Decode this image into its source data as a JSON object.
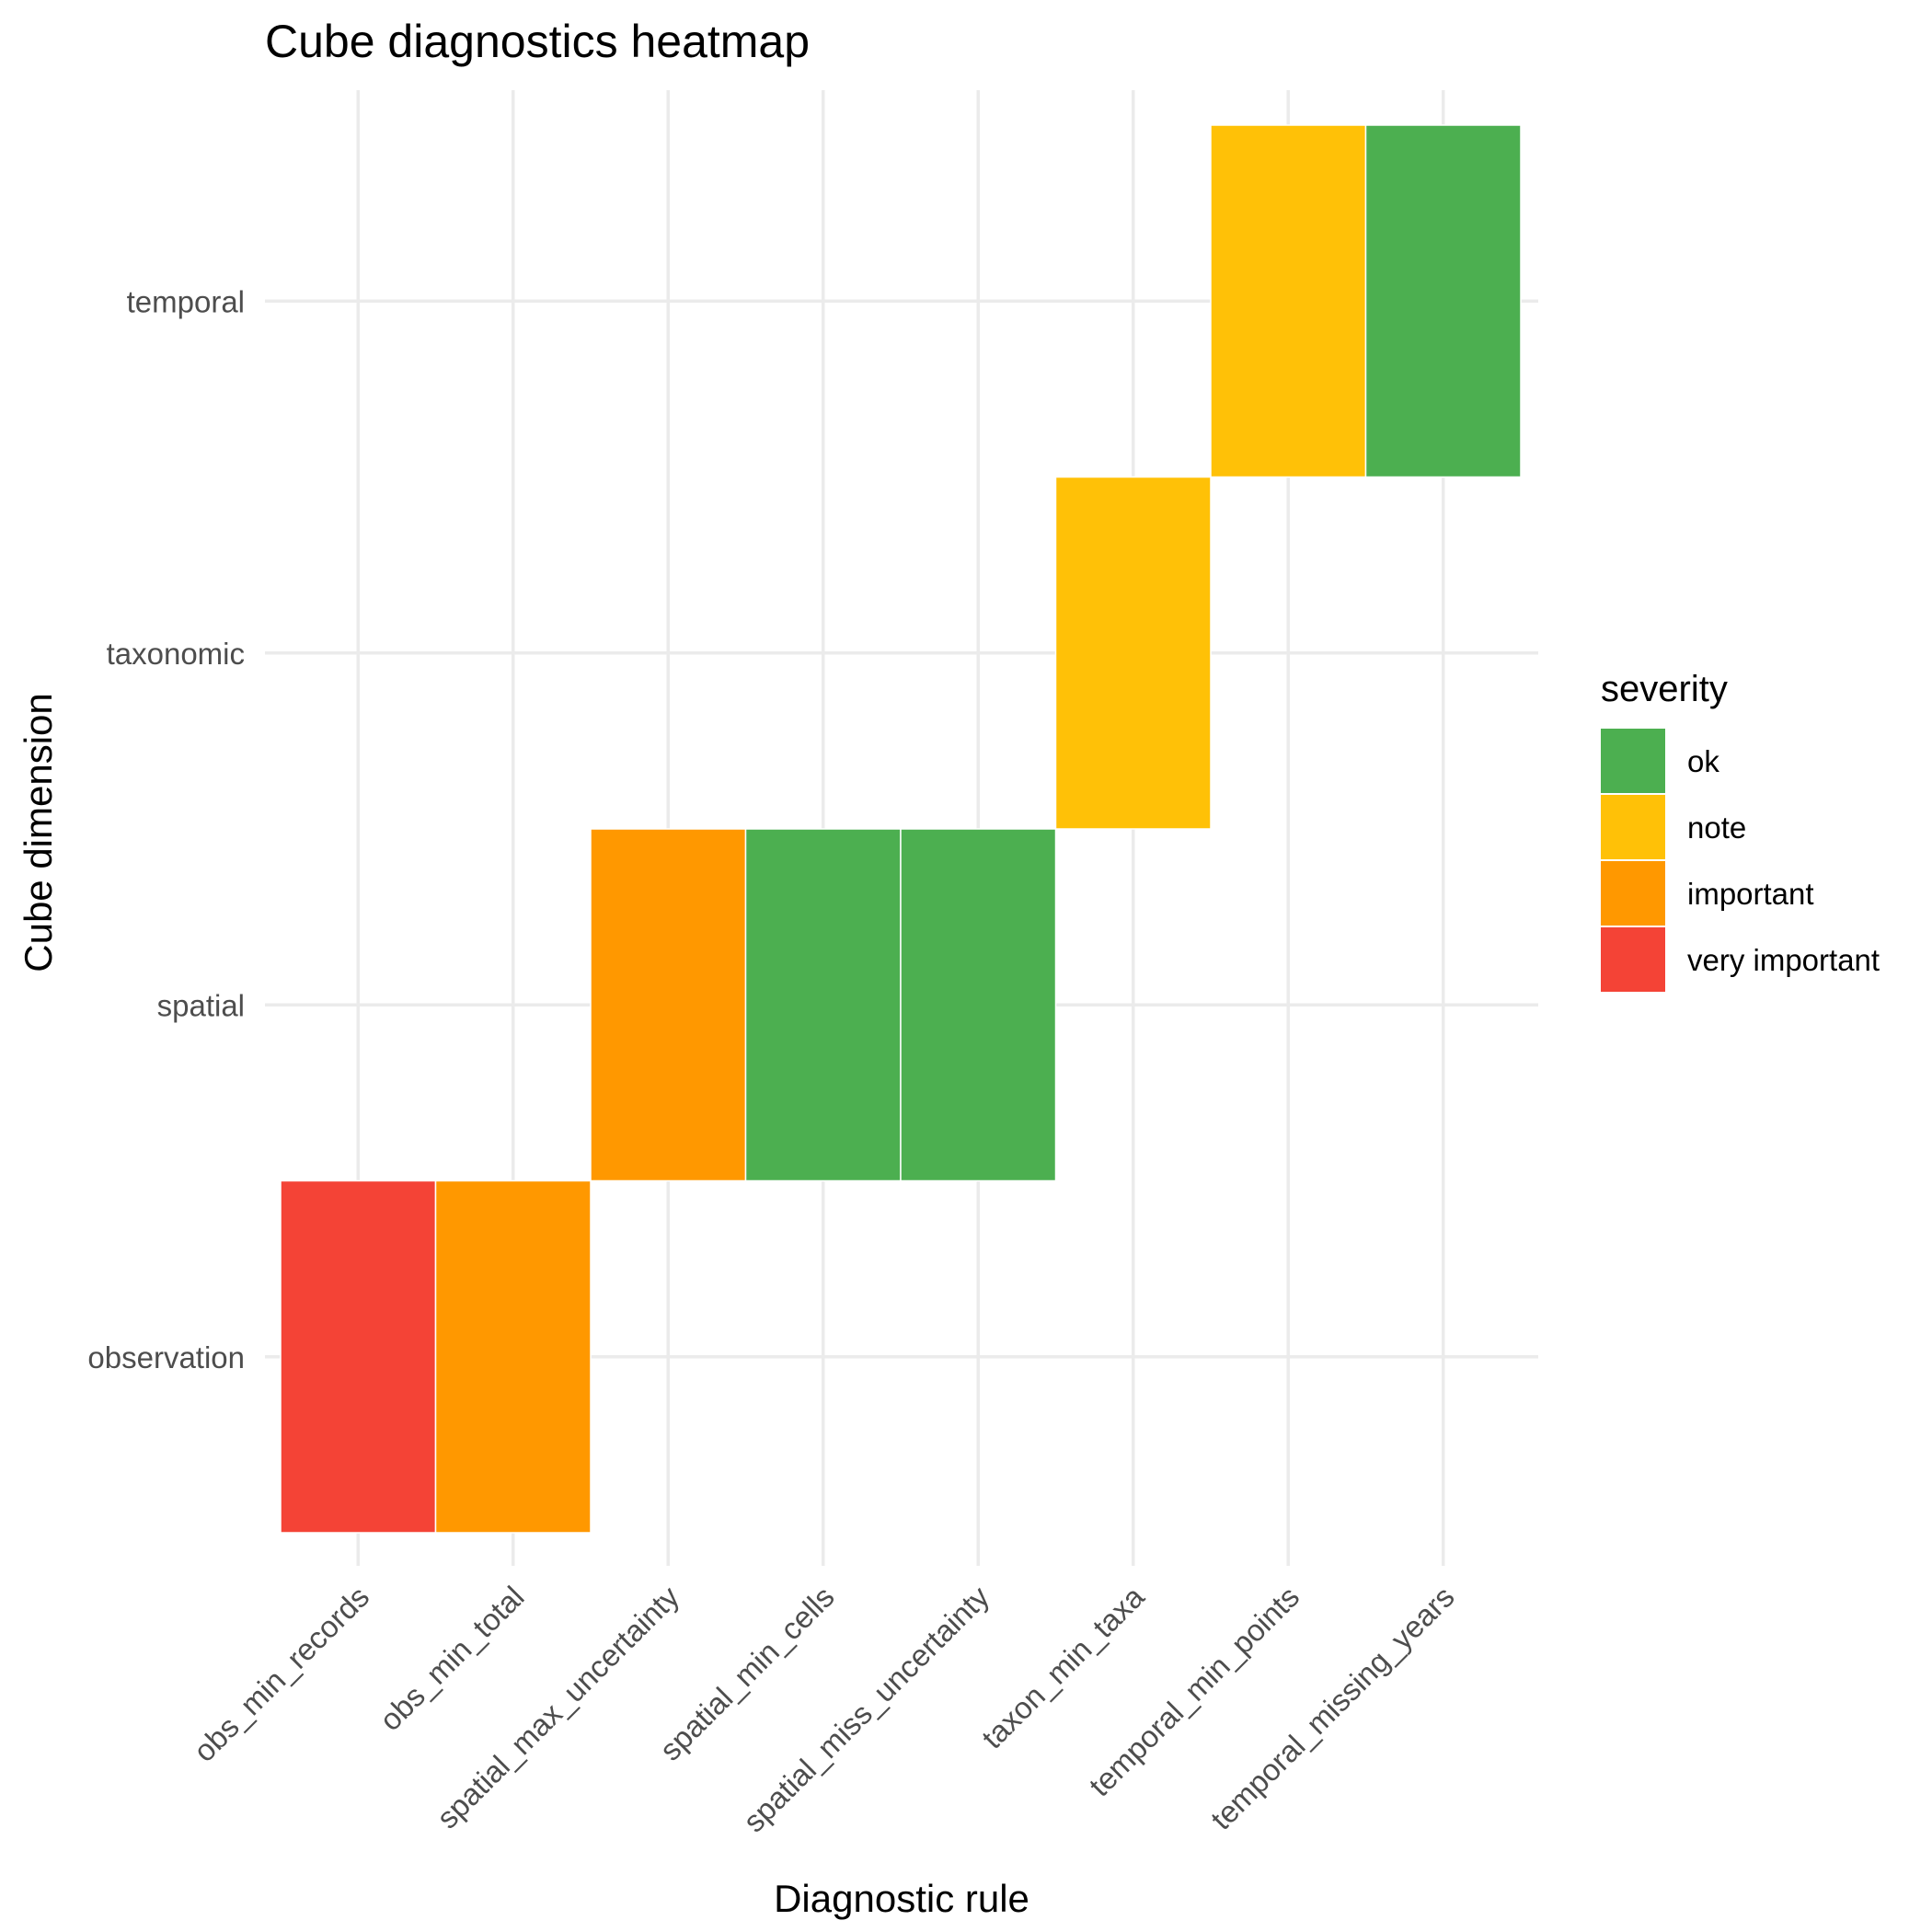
{
  "chart_data": {
    "type": "heatmap",
    "title": "Cube diagnostics heatmap",
    "xlabel": "Diagnostic rule",
    "ylabel": "Cube dimension",
    "grid": true,
    "legend_position": "right",
    "x_categories": [
      "obs_min_records",
      "obs_min_total",
      "spatial_max_uncertainty",
      "spatial_min_cells",
      "spatial_miss_uncertainty",
      "taxon_min_taxa",
      "temporal_min_points",
      "temporal_missing_years"
    ],
    "y_categories": [
      "observation",
      "spatial",
      "taxonomic",
      "temporal"
    ],
    "legend": {
      "title": "severity",
      "items": [
        {
          "label": "ok",
          "color": "#4CAF50"
        },
        {
          "label": "note",
          "color": "#FFC107"
        },
        {
          "label": "important",
          "color": "#FF9800"
        },
        {
          "label": "very important",
          "color": "#F44336"
        }
      ]
    },
    "cells": [
      {
        "x": "obs_min_records",
        "y": "observation",
        "severity": "very important"
      },
      {
        "x": "obs_min_total",
        "y": "observation",
        "severity": "important"
      },
      {
        "x": "spatial_max_uncertainty",
        "y": "spatial",
        "severity": "important"
      },
      {
        "x": "spatial_min_cells",
        "y": "spatial",
        "severity": "ok"
      },
      {
        "x": "spatial_miss_uncertainty",
        "y": "spatial",
        "severity": "ok"
      },
      {
        "x": "taxon_min_taxa",
        "y": "taxonomic",
        "severity": "note"
      },
      {
        "x": "temporal_min_points",
        "y": "temporal",
        "severity": "note"
      },
      {
        "x": "temporal_missing_years",
        "y": "temporal",
        "severity": "ok"
      }
    ]
  }
}
